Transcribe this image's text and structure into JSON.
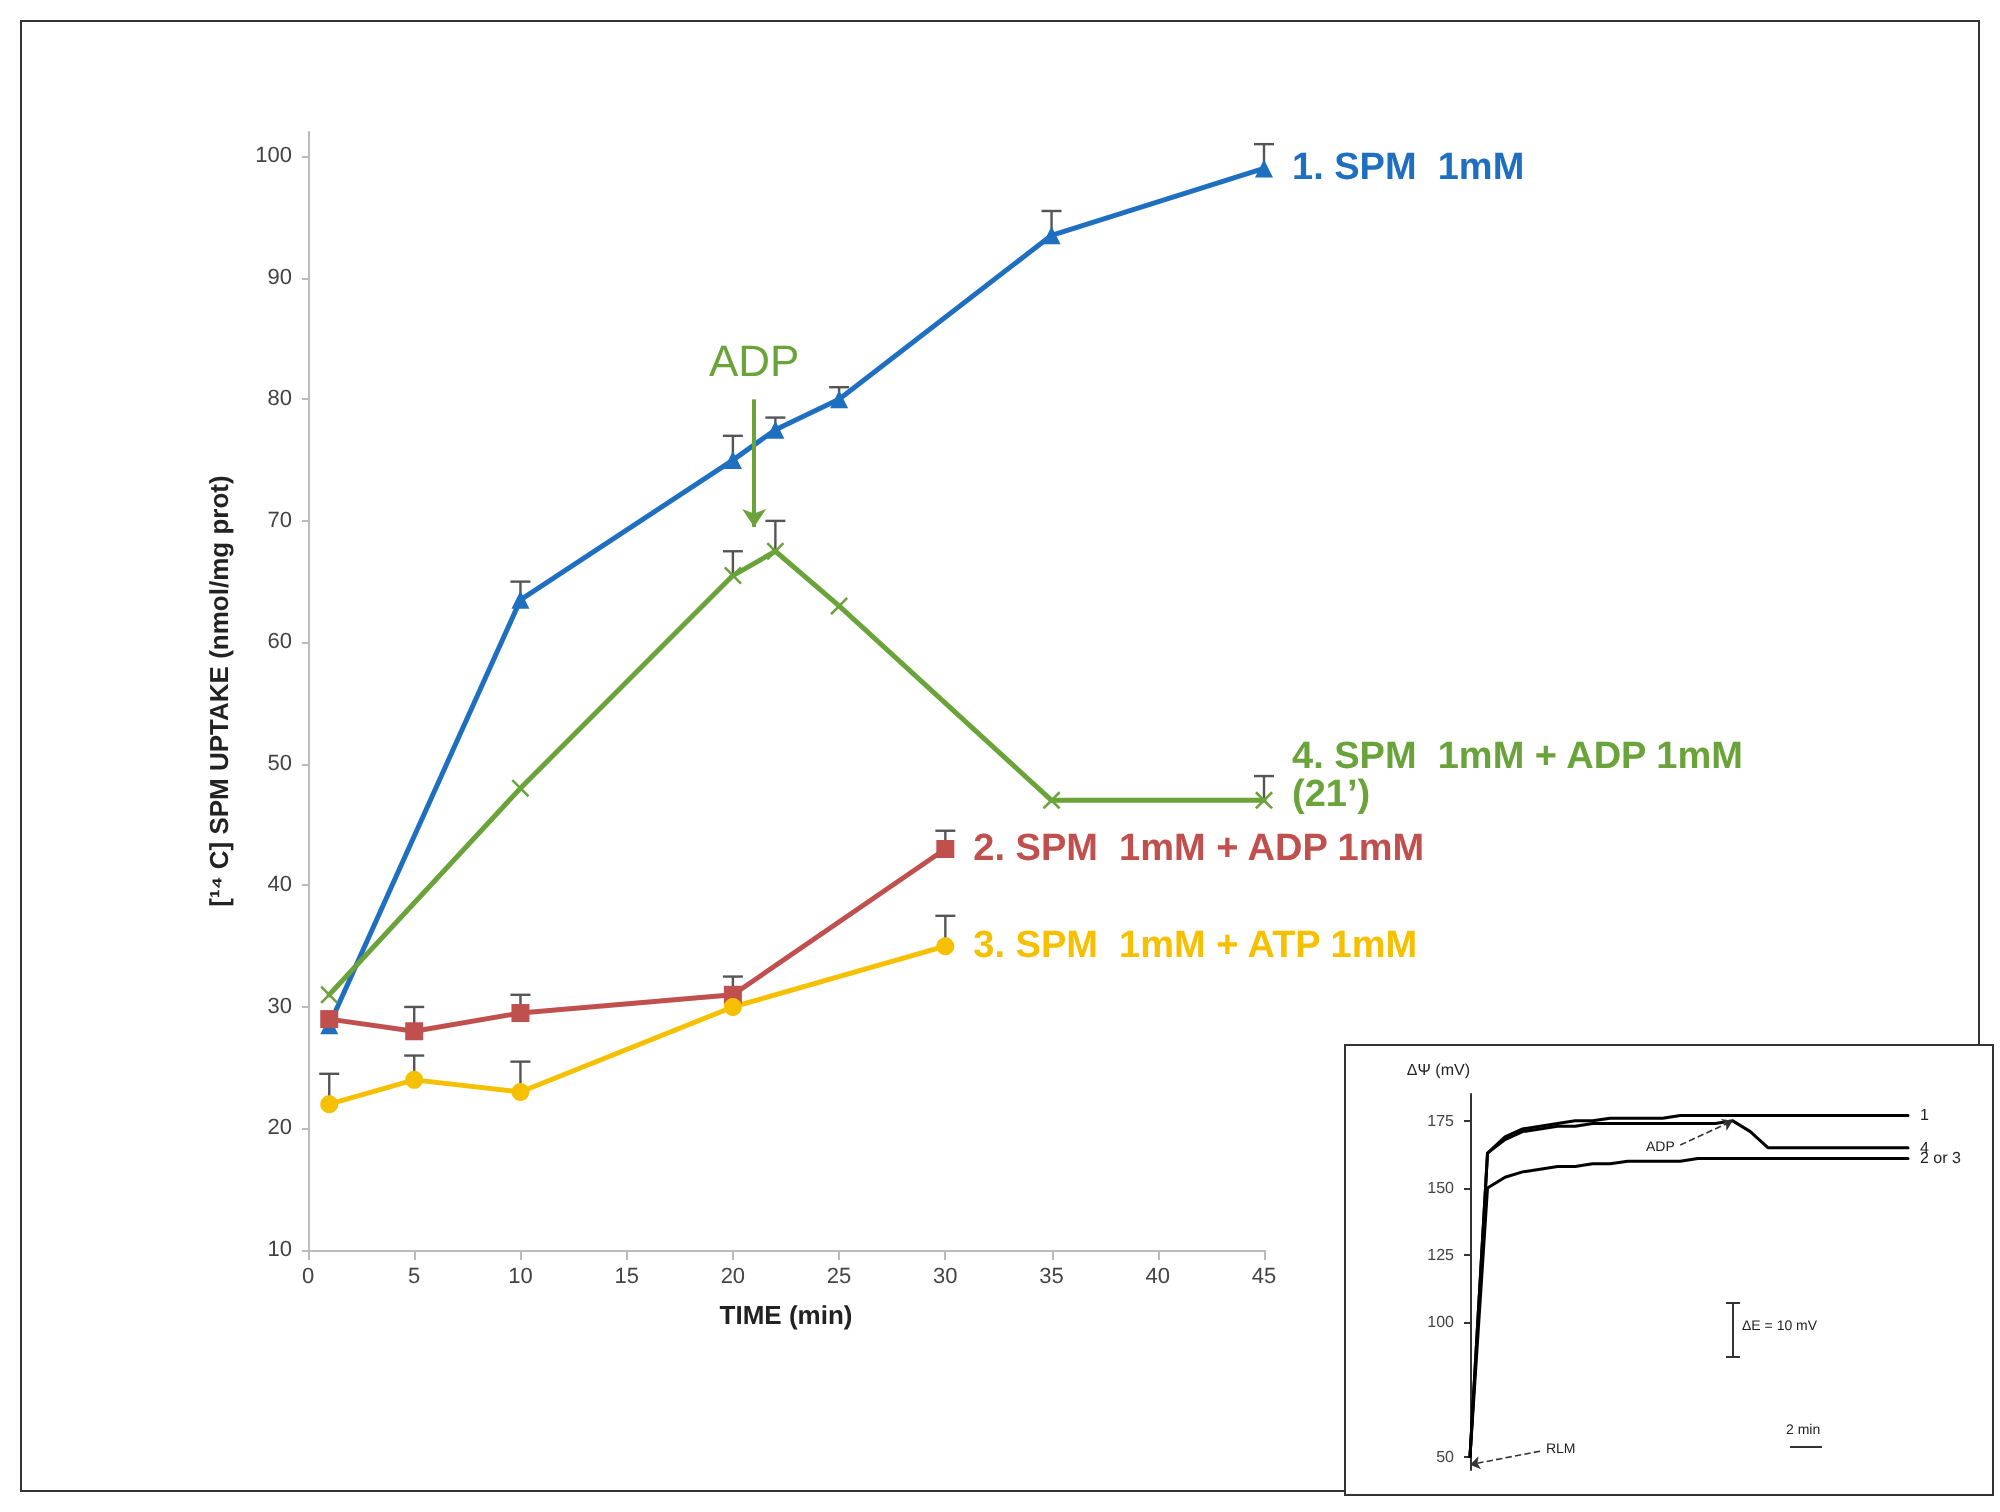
{
  "chart_data": [
    {
      "type": "line",
      "xlabel": "TIME (min)",
      "ylabel": "[¹⁴ C] SPM UPTAKE (nmol/mg prot)",
      "xlim": [
        0,
        45
      ],
      "xticks": [
        0,
        5,
        10,
        15,
        20,
        25,
        30,
        35,
        40,
        45
      ],
      "ylim": [
        10,
        102
      ],
      "yticks": [
        10,
        20,
        30,
        40,
        50,
        60,
        70,
        80,
        90,
        100
      ],
      "grid": false,
      "line_style": "solid",
      "annotations": [
        "ADP"
      ],
      "series": [
        {
          "name": "1. SPM  1mM",
          "color": "#1f6fc0",
          "marker": "triangle",
          "x": [
            1,
            10,
            20,
            22,
            25,
            35,
            45
          ],
          "values": [
            28.5,
            63.5,
            75,
            77.5,
            80,
            93.5,
            99
          ],
          "errors": [
            null,
            [
              63.5,
              65
            ],
            [
              75,
              77
            ],
            [
              77.5,
              78.5
            ],
            [
              80,
              81
            ],
            [
              93.5,
              95.5
            ],
            [
              99,
              101
            ]
          ]
        },
        {
          "name": "4. SPM  1mM + ADP 1mM (21’)",
          "color": "#6aa33a",
          "marker": "cross",
          "x": [
            1,
            10,
            20,
            22,
            25,
            35,
            45
          ],
          "values": [
            31,
            48,
            65.5,
            67.5,
            63,
            47,
            47
          ],
          "errors": [
            null,
            null,
            [
              65.5,
              67.5
            ],
            [
              67.5,
              70
            ],
            null,
            null,
            [
              47,
              49
            ]
          ]
        },
        {
          "name": "2. SPM  1mM + ADP 1mM",
          "color": "#c0504d",
          "marker": "square",
          "x": [
            1,
            5,
            10,
            20,
            30
          ],
          "values": [
            29,
            28,
            29.5,
            31,
            43
          ],
          "errors": [
            null,
            [
              28,
              30
            ],
            [
              29.5,
              31
            ],
            [
              31,
              32.5
            ],
            [
              43,
              44.5
            ]
          ]
        },
        {
          "name": "3. SPM  1mM + ATP 1mM",
          "color": "#f5c000",
          "marker": "circle",
          "x": [
            1,
            5,
            10,
            20,
            30
          ],
          "values": [
            22,
            24,
            23,
            30,
            35
          ],
          "errors": [
            [
              22,
              24.5
            ],
            [
              24,
              26
            ],
            [
              23,
              25.5
            ],
            null,
            [
              35,
              37.5
            ]
          ]
        }
      ]
    },
    {
      "type": "line",
      "ylabel": "ΔΨ (mV)",
      "categories": [
        null,
        null,
        null,
        null,
        null,
        null,
        null,
        null,
        null,
        null,
        null,
        null,
        null,
        null,
        null,
        null,
        null,
        null,
        null,
        null,
        null,
        null,
        null,
        null,
        null,
        null
      ],
      "ylim": [
        45,
        185
      ],
      "yticks": [
        50,
        100,
        125,
        150,
        175
      ],
      "tick_labels": "y",
      "grid": false,
      "marker": "none",
      "line_style": "solid",
      "annotations": [
        "ADP",
        "RLM",
        "ΔE = 10 mV",
        "2 min"
      ],
      "series": [
        {
          "name": "1",
          "color": "#000000",
          "values": [
            50,
            163,
            169,
            172,
            173,
            174,
            175,
            175,
            176,
            176,
            176,
            176,
            177,
            177,
            177,
            177,
            177,
            177,
            177,
            177,
            177,
            177,
            177,
            177,
            177,
            177
          ]
        },
        {
          "name": "4",
          "color": "#000000",
          "values": [
            50,
            163,
            168,
            171,
            172,
            173,
            173,
            174,
            174,
            174,
            174,
            174,
            174,
            174,
            174,
            175,
            171,
            165,
            165,
            165,
            165,
            165,
            165,
            165,
            165,
            165
          ]
        },
        {
          "name": "2 or 3",
          "color": "#000000",
          "values": [
            50,
            150,
            154,
            156,
            157,
            158,
            158,
            159,
            159,
            160,
            160,
            160,
            160,
            161,
            161,
            161,
            161,
            161,
            161,
            161,
            161,
            161,
            161,
            161,
            161,
            161
          ]
        }
      ]
    }
  ]
}
